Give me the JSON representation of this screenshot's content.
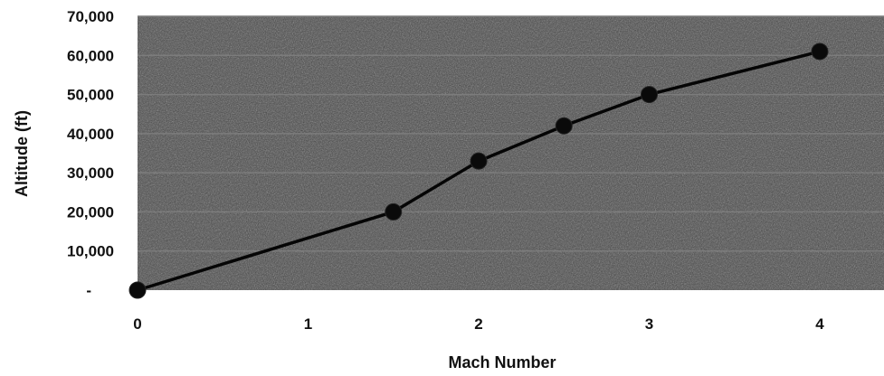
{
  "chart_data": {
    "type": "line",
    "title": "",
    "xlabel": "Mach Number",
    "ylabel": "Altitude (ft)",
    "xlim": [
      0,
      4.4
    ],
    "ylim": [
      0,
      70000
    ],
    "x_ticks": [
      "0",
      "1",
      "2",
      "3",
      "4"
    ],
    "y_ticks": [
      "-",
      "10,000",
      "20,000",
      "30,000",
      "40,000",
      "50,000",
      "60,000",
      "70,000"
    ],
    "grid": true,
    "legend": "none",
    "series": [
      {
        "x": [
          0,
          1.5,
          2,
          2.5,
          3,
          4
        ],
        "y": [
          0,
          20000,
          33000,
          42000,
          50000,
          61000
        ]
      }
    ],
    "colors": {
      "plot_background": "#4a4a4a",
      "gridline": "#7c7c7c",
      "line": "#050505",
      "marker": "#0a0a0a"
    }
  }
}
